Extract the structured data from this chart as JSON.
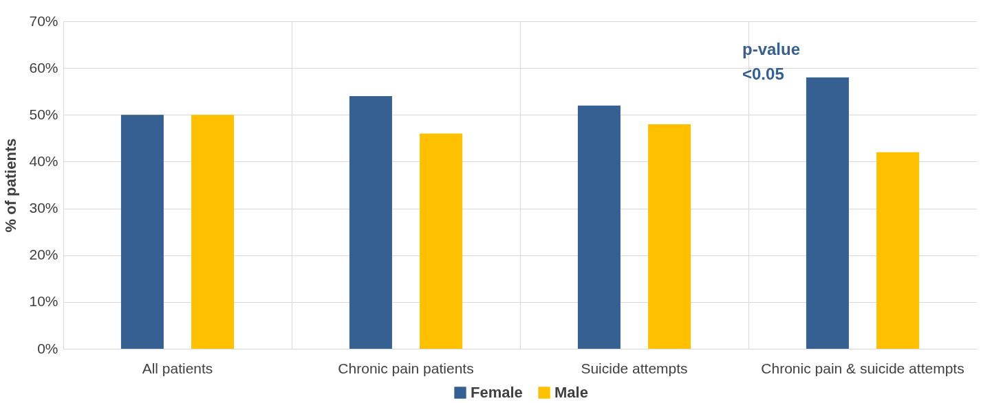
{
  "chart_data": {
    "type": "bar",
    "ylabel": "% of patients",
    "categories": [
      "All patients",
      "Chronic pain patients",
      "Suicide attempts",
      "Chronic pain & suicide attempts"
    ],
    "series": [
      {
        "name": "Female",
        "color": "#366092",
        "values": [
          50,
          54,
          52,
          58
        ]
      },
      {
        "name": "Male",
        "color": "#ffc000",
        "values": [
          50,
          46,
          48,
          42
        ]
      }
    ],
    "ylim": [
      0,
      70
    ],
    "yticks": [
      {
        "value": 0,
        "label": "0%"
      },
      {
        "value": 10,
        "label": "10%"
      },
      {
        "value": 20,
        "label": "20%"
      },
      {
        "value": 30,
        "label": "30%"
      },
      {
        "value": 40,
        "label": "40%"
      },
      {
        "value": 50,
        "label": "50%"
      },
      {
        "value": 60,
        "label": "60%"
      },
      {
        "value": 70,
        "label": "70%"
      }
    ],
    "grid": true,
    "legend": "bottom",
    "annotations": [
      "p-value\n<0.05"
    ]
  }
}
